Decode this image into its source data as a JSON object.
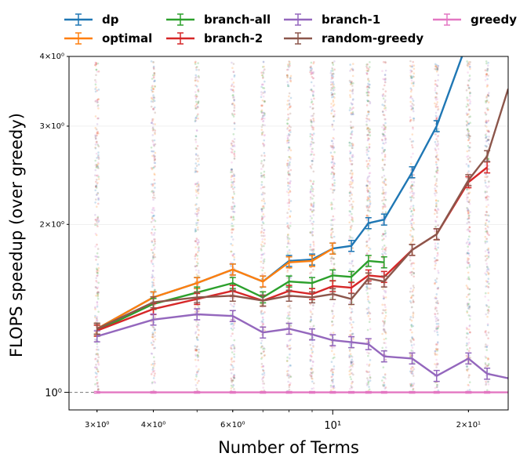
{
  "chart_data": {
    "type": "line",
    "xlabel": "Number of Terms",
    "ylabel": "FLOPS speedup (over greedy)",
    "x_scale": "log",
    "y_scale": "log",
    "xlim": [
      2.6,
      24.5
    ],
    "ylim": [
      0.93,
      4.0
    ],
    "x_ticks": [
      {
        "value": 3,
        "label": "3×10⁰"
      },
      {
        "value": 4,
        "label": "4×10⁰"
      },
      {
        "value": 6,
        "label": "6×10⁰"
      },
      {
        "value": 10,
        "label": "10¹"
      },
      {
        "value": 20,
        "label": "2×10¹"
      }
    ],
    "y_ticks": [
      {
        "value": 1,
        "label": "10⁰"
      },
      {
        "value": 2,
        "label": "2×10⁰"
      },
      {
        "value": 3,
        "label": "3×10⁰"
      },
      {
        "value": 4,
        "label": "4×10⁰"
      }
    ],
    "legend_position": "top",
    "reference_line": {
      "y": 1,
      "style": "dashed"
    },
    "series": [
      {
        "name": "dp",
        "color": "#1f77b4",
        "x": [
          3,
          4,
          5,
          6,
          7,
          8,
          9,
          10,
          11,
          12,
          13,
          15,
          17,
          20
        ],
        "y": [
          1.3,
          1.48,
          1.57,
          1.66,
          1.58,
          1.72,
          1.73,
          1.81,
          1.83,
          2.01,
          2.04,
          2.48,
          3.0,
          4.3
        ]
      },
      {
        "name": "optimal",
        "color": "#ff7f0e",
        "x": [
          3,
          4,
          5,
          6,
          7,
          8,
          9,
          10
        ],
        "y": [
          1.3,
          1.48,
          1.57,
          1.66,
          1.58,
          1.71,
          1.72,
          1.81
        ]
      },
      {
        "name": "branch-all",
        "color": "#2ca02c",
        "x": [
          3,
          4,
          5,
          6,
          7,
          8,
          9,
          10,
          11,
          12,
          13
        ],
        "y": [
          1.29,
          1.44,
          1.51,
          1.57,
          1.48,
          1.58,
          1.57,
          1.62,
          1.61,
          1.72,
          1.71
        ]
      },
      {
        "name": "branch-2",
        "color": "#d62728",
        "x": [
          3,
          4,
          5,
          6,
          7,
          8,
          9,
          10,
          11,
          12,
          13,
          15,
          17,
          20,
          22
        ],
        "y": [
          1.29,
          1.41,
          1.47,
          1.52,
          1.46,
          1.52,
          1.5,
          1.55,
          1.54,
          1.62,
          1.61,
          1.8,
          1.92,
          2.38,
          2.53
        ]
      },
      {
        "name": "branch-1",
        "color": "#9467bd",
        "x": [
          3,
          4,
          5,
          6,
          7,
          8,
          9,
          10,
          11,
          12,
          13,
          15,
          17,
          20,
          22,
          24.5
        ],
        "y": [
          1.26,
          1.35,
          1.38,
          1.37,
          1.28,
          1.3,
          1.27,
          1.24,
          1.23,
          1.22,
          1.16,
          1.15,
          1.07,
          1.15,
          1.08,
          1.06
        ]
      },
      {
        "name": "random-greedy",
        "color": "#8c564b",
        "x": [
          3,
          4,
          5,
          6,
          7,
          8,
          9,
          10,
          11,
          12,
          13,
          15,
          17,
          20,
          22,
          24.5
        ],
        "y": [
          1.3,
          1.45,
          1.48,
          1.49,
          1.46,
          1.49,
          1.48,
          1.5,
          1.47,
          1.6,
          1.58,
          1.8,
          1.92,
          2.4,
          2.65,
          3.5
        ]
      },
      {
        "name": "greedy",
        "color": "#e377c2",
        "x": [
          3,
          4,
          5,
          6,
          7,
          8,
          9,
          10,
          11,
          12,
          13,
          15,
          17,
          20,
          22,
          24.5
        ],
        "y": [
          1,
          1,
          1,
          1,
          1,
          1,
          1,
          1,
          1,
          1,
          1,
          1,
          1,
          1,
          1,
          1
        ]
      }
    ]
  }
}
